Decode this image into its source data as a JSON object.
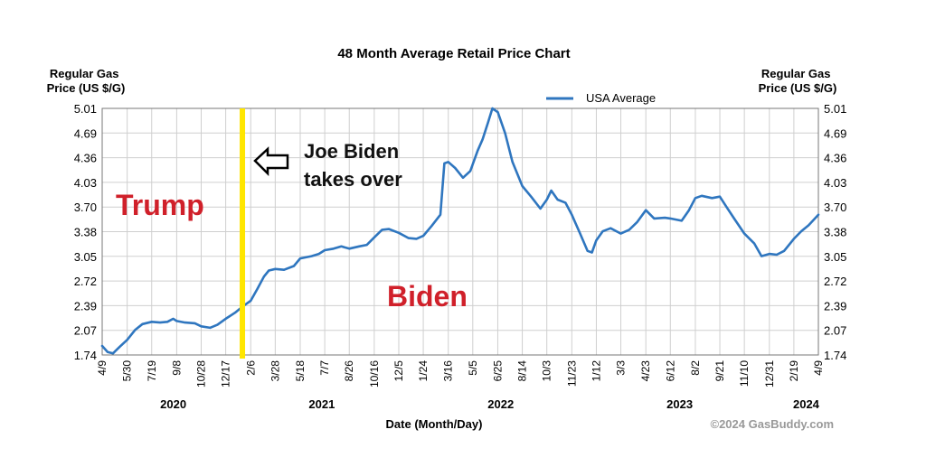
{
  "chart_data": {
    "type": "line",
    "title": "48 Month Average Retail Price Chart",
    "ylabel_left": [
      "Regular Gas",
      "Price (US $/G)"
    ],
    "ylabel_right": [
      "Regular Gas",
      "Price (US $/G)"
    ],
    "xlabel": "Date (Month/Day)",
    "credit": "©2024 GasBuddy.com",
    "ylim": [
      1.74,
      5.01
    ],
    "yticks": [
      "5.01",
      "4.69",
      "4.36",
      "4.03",
      "3.70",
      "3.38",
      "3.05",
      "2.72",
      "2.39",
      "2.07",
      "1.74"
    ],
    "x_range": [
      "2020-04-09",
      "2024-04-09"
    ],
    "xticks": [
      {
        "date": "2020-04-09",
        "label": "4/9"
      },
      {
        "date": "2020-05-30",
        "label": "5/30"
      },
      {
        "date": "2020-07-19",
        "label": "7/19"
      },
      {
        "date": "2020-09-08",
        "label": "9/8"
      },
      {
        "date": "2020-10-28",
        "label": "10/28"
      },
      {
        "date": "2020-12-17",
        "label": "12/17"
      },
      {
        "date": "2021-02-06",
        "label": "2/6"
      },
      {
        "date": "2021-03-28",
        "label": "3/28"
      },
      {
        "date": "2021-05-18",
        "label": "5/18"
      },
      {
        "date": "2021-07-07",
        "label": "7/7"
      },
      {
        "date": "2021-08-26",
        "label": "8/26"
      },
      {
        "date": "2021-10-16",
        "label": "10/16"
      },
      {
        "date": "2021-12-05",
        "label": "12/5"
      },
      {
        "date": "2022-01-24",
        "label": "1/24"
      },
      {
        "date": "2022-03-16",
        "label": "3/16"
      },
      {
        "date": "2022-05-05",
        "label": "5/5"
      },
      {
        "date": "2022-06-25",
        "label": "6/25"
      },
      {
        "date": "2022-08-14",
        "label": "8/14"
      },
      {
        "date": "2022-10-03",
        "label": "10/3"
      },
      {
        "date": "2022-11-23",
        "label": "11/23"
      },
      {
        "date": "2023-01-12",
        "label": "1/12"
      },
      {
        "date": "2023-03-03",
        "label": "3/3"
      },
      {
        "date": "2023-04-23",
        "label": "4/23"
      },
      {
        "date": "2023-06-12",
        "label": "6/12"
      },
      {
        "date": "2023-08-02",
        "label": "8/2"
      },
      {
        "date": "2023-09-21",
        "label": "9/21"
      },
      {
        "date": "2023-11-10",
        "label": "11/10"
      },
      {
        "date": "2023-12-31",
        "label": "12/31"
      },
      {
        "date": "2024-02-19",
        "label": "2/19"
      },
      {
        "date": "2024-04-09",
        "label": "4/9"
      }
    ],
    "year_labels": [
      {
        "date": "2020-09-01",
        "label": "2020"
      },
      {
        "date": "2021-07-01",
        "label": "2021"
      },
      {
        "date": "2022-07-01",
        "label": "2022"
      },
      {
        "date": "2023-07-01",
        "label": "2023"
      },
      {
        "date": "2024-03-15",
        "label": "2024"
      }
    ],
    "grid": true,
    "legend": {
      "position": "top-right"
    },
    "series": [
      {
        "name": "USA Average",
        "color": "#2f76bf",
        "points": [
          [
            "2020-04-09",
            1.86
          ],
          [
            "2020-04-20",
            1.78
          ],
          [
            "2020-05-01",
            1.76
          ],
          [
            "2020-05-15",
            1.85
          ],
          [
            "2020-05-30",
            1.94
          ],
          [
            "2020-06-15",
            2.07
          ],
          [
            "2020-06-30",
            2.15
          ],
          [
            "2020-07-19",
            2.18
          ],
          [
            "2020-08-05",
            2.17
          ],
          [
            "2020-08-20",
            2.18
          ],
          [
            "2020-09-01",
            2.22
          ],
          [
            "2020-09-08",
            2.19
          ],
          [
            "2020-09-25",
            2.17
          ],
          [
            "2020-10-15",
            2.16
          ],
          [
            "2020-10-28",
            2.12
          ],
          [
            "2020-11-15",
            2.1
          ],
          [
            "2020-11-30",
            2.14
          ],
          [
            "2020-12-17",
            2.22
          ],
          [
            "2021-01-05",
            2.3
          ],
          [
            "2021-01-20",
            2.38
          ],
          [
            "2021-02-06",
            2.46
          ],
          [
            "2021-02-20",
            2.62
          ],
          [
            "2021-03-05",
            2.78
          ],
          [
            "2021-03-15",
            2.86
          ],
          [
            "2021-03-28",
            2.88
          ],
          [
            "2021-04-15",
            2.87
          ],
          [
            "2021-05-05",
            2.92
          ],
          [
            "2021-05-18",
            3.02
          ],
          [
            "2021-06-10",
            3.05
          ],
          [
            "2021-06-25",
            3.08
          ],
          [
            "2021-07-07",
            3.13
          ],
          [
            "2021-07-25",
            3.15
          ],
          [
            "2021-08-10",
            3.18
          ],
          [
            "2021-08-26",
            3.15
          ],
          [
            "2021-09-15",
            3.18
          ],
          [
            "2021-10-01",
            3.2
          ],
          [
            "2021-10-16",
            3.3
          ],
          [
            "2021-11-01",
            3.4
          ],
          [
            "2021-11-15",
            3.41
          ],
          [
            "2021-12-05",
            3.36
          ],
          [
            "2021-12-25",
            3.29
          ],
          [
            "2022-01-10",
            3.28
          ],
          [
            "2022-01-24",
            3.32
          ],
          [
            "2022-02-10",
            3.45
          ],
          [
            "2022-02-28",
            3.6
          ],
          [
            "2022-03-08",
            4.28
          ],
          [
            "2022-03-16",
            4.3
          ],
          [
            "2022-03-30",
            4.22
          ],
          [
            "2022-04-15",
            4.09
          ],
          [
            "2022-04-30",
            4.18
          ],
          [
            "2022-05-05",
            4.27
          ],
          [
            "2022-05-15",
            4.45
          ],
          [
            "2022-05-25",
            4.6
          ],
          [
            "2022-06-05",
            4.82
          ],
          [
            "2022-06-14",
            5.01
          ],
          [
            "2022-06-25",
            4.96
          ],
          [
            "2022-07-10",
            4.68
          ],
          [
            "2022-07-25",
            4.3
          ],
          [
            "2022-08-14",
            3.98
          ],
          [
            "2022-09-01",
            3.84
          ],
          [
            "2022-09-20",
            3.68
          ],
          [
            "2022-10-03",
            3.8
          ],
          [
            "2022-10-12",
            3.92
          ],
          [
            "2022-10-25",
            3.8
          ],
          [
            "2022-11-10",
            3.76
          ],
          [
            "2022-11-23",
            3.6
          ],
          [
            "2022-12-10",
            3.35
          ],
          [
            "2022-12-25",
            3.12
          ],
          [
            "2023-01-03",
            3.1
          ],
          [
            "2023-01-12",
            3.26
          ],
          [
            "2023-01-25",
            3.38
          ],
          [
            "2023-02-10",
            3.42
          ],
          [
            "2023-03-03",
            3.35
          ],
          [
            "2023-03-20",
            3.4
          ],
          [
            "2023-04-05",
            3.5
          ],
          [
            "2023-04-23",
            3.66
          ],
          [
            "2023-05-10",
            3.55
          ],
          [
            "2023-06-01",
            3.56
          ],
          [
            "2023-06-12",
            3.55
          ],
          [
            "2023-07-05",
            3.52
          ],
          [
            "2023-07-20",
            3.66
          ],
          [
            "2023-08-02",
            3.82
          ],
          [
            "2023-08-15",
            3.85
          ],
          [
            "2023-09-05",
            3.82
          ],
          [
            "2023-09-21",
            3.84
          ],
          [
            "2023-10-05",
            3.7
          ],
          [
            "2023-10-20",
            3.55
          ],
          [
            "2023-11-10",
            3.35
          ],
          [
            "2023-11-30",
            3.22
          ],
          [
            "2023-12-15",
            3.05
          ],
          [
            "2023-12-31",
            3.08
          ],
          [
            "2024-01-15",
            3.07
          ],
          [
            "2024-01-30",
            3.12
          ],
          [
            "2024-02-19",
            3.28
          ],
          [
            "2024-03-05",
            3.38
          ],
          [
            "2024-03-20",
            3.46
          ],
          [
            "2024-04-09",
            3.6
          ]
        ]
      }
    ],
    "marker_line": {
      "date": "2021-01-20",
      "color": "#ffe600"
    },
    "annotations": [
      {
        "id": "trump",
        "text": "Trump",
        "color": "#d0202a"
      },
      {
        "id": "biden",
        "text": "Biden",
        "color": "#d0202a"
      },
      {
        "id": "joe1",
        "text": "Joe Biden",
        "color": "#111111"
      },
      {
        "id": "joe2",
        "text": "takes over",
        "color": "#111111"
      }
    ],
    "arrow": {
      "direction": "left",
      "icon": "left-arrow-icon"
    }
  }
}
